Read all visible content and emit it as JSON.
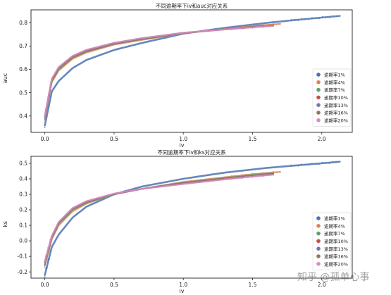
{
  "watermark": "知乎 @孤单心事",
  "legend_labels": [
    "逾期率1%",
    "逾期率4%",
    "逾期率7%",
    "逾期率10%",
    "逾期率13%",
    "逾期率16%",
    "逾期率20%"
  ],
  "series_colors": [
    "#4c72b0",
    "#dd8452",
    "#55a868",
    "#c44e52",
    "#8172b3",
    "#937860",
    "#da8bc3"
  ],
  "chart_data": [
    {
      "type": "scatter",
      "title": "不同逾期率下iv和auc对应关系",
      "xlabel": "iv",
      "ylabel": "auc",
      "xlim": [
        -0.1,
        2.22
      ],
      "ylim": [
        0.33,
        0.855
      ],
      "xticks": [
        "0.0",
        "0.5",
        "1.0",
        "1.5",
        "2.0"
      ],
      "yticks": [
        "0.4",
        "0.5",
        "0.6",
        "0.7",
        "0.8"
      ],
      "xtick_values": [
        0.0,
        0.5,
        1.0,
        1.5,
        2.0
      ],
      "ytick_values": [
        0.4,
        0.5,
        0.6,
        0.7,
        0.8
      ],
      "legend_position": "lower-right",
      "grid": false,
      "series": [
        {
          "name": "逾期率1%",
          "x": [
            0.0,
            0.05,
            0.1,
            0.2,
            0.3,
            0.5,
            0.7,
            1.0,
            1.3,
            1.6,
            1.8,
            2.0,
            2.13
          ],
          "y": [
            0.36,
            0.505,
            0.55,
            0.605,
            0.64,
            0.683,
            0.713,
            0.753,
            0.778,
            0.799,
            0.811,
            0.822,
            0.829
          ]
        },
        {
          "name": "逾期率4%",
          "x": [
            0.0,
            0.05,
            0.1,
            0.2,
            0.3,
            0.5,
            0.7,
            1.0,
            1.3,
            1.5,
            1.7
          ],
          "y": [
            0.39,
            0.545,
            0.595,
            0.645,
            0.672,
            0.706,
            0.726,
            0.754,
            0.773,
            0.785,
            0.795
          ]
        },
        {
          "name": "逾期率7%",
          "x": [
            0.0,
            0.05,
            0.1,
            0.2,
            0.3,
            0.5,
            0.7,
            1.0,
            1.3,
            1.5,
            1.65
          ],
          "y": [
            0.395,
            0.55,
            0.6,
            0.65,
            0.676,
            0.709,
            0.729,
            0.755,
            0.772,
            0.783,
            0.79
          ]
        },
        {
          "name": "逾期率10%",
          "x": [
            0.0,
            0.05,
            0.1,
            0.2,
            0.3,
            0.5,
            0.7,
            1.0,
            1.3,
            1.5,
            1.65
          ],
          "y": [
            0.4,
            0.555,
            0.605,
            0.653,
            0.679,
            0.711,
            0.731,
            0.756,
            0.772,
            0.782,
            0.789
          ]
        },
        {
          "name": "逾期率13%",
          "x": [
            0.0,
            0.05,
            0.1,
            0.2,
            0.3,
            0.5,
            0.7,
            1.0,
            1.3,
            1.5,
            1.65
          ],
          "y": [
            0.4,
            0.557,
            0.607,
            0.655,
            0.681,
            0.712,
            0.732,
            0.756,
            0.771,
            0.781,
            0.788
          ]
        },
        {
          "name": "逾期率16%",
          "x": [
            0.0,
            0.05,
            0.1,
            0.2,
            0.3,
            0.5,
            0.7,
            1.0,
            1.3,
            1.5,
            1.65
          ],
          "y": [
            0.4,
            0.558,
            0.608,
            0.656,
            0.682,
            0.713,
            0.733,
            0.757,
            0.771,
            0.78,
            0.787
          ]
        },
        {
          "name": "逾期率20%",
          "x": [
            0.0,
            0.05,
            0.1,
            0.2,
            0.3,
            0.5,
            0.7,
            1.0,
            1.3,
            1.5,
            1.65
          ],
          "y": [
            0.4,
            0.56,
            0.61,
            0.658,
            0.684,
            0.714,
            0.734,
            0.757,
            0.771,
            0.78,
            0.786
          ]
        }
      ]
    },
    {
      "type": "scatter",
      "title": "不同逾期率下iv和ks对应关系",
      "xlabel": "iv",
      "ylabel": "ks",
      "xlim": [
        -0.1,
        2.22
      ],
      "ylim": [
        -0.24,
        0.545
      ],
      "xticks": [
        "0.0",
        "0.5",
        "1.0",
        "1.5",
        "2.0"
      ],
      "yticks": [
        "-0.2",
        "-0.1",
        "0.0",
        "0.1",
        "0.2",
        "0.3",
        "0.4",
        "0.5"
      ],
      "xtick_values": [
        0.0,
        0.5,
        1.0,
        1.5,
        2.0
      ],
      "ytick_values": [
        -0.2,
        -0.1,
        0.0,
        0.1,
        0.2,
        0.3,
        0.4,
        0.5
      ],
      "legend_position": "lower-right",
      "grid": false,
      "series": [
        {
          "name": "逾期率1%",
          "x": [
            0.0,
            0.05,
            0.1,
            0.2,
            0.3,
            0.5,
            0.7,
            1.0,
            1.3,
            1.6,
            1.8,
            2.0,
            2.13
          ],
          "y": [
            -0.22,
            -0.04,
            0.04,
            0.15,
            0.22,
            0.3,
            0.35,
            0.4,
            0.44,
            0.47,
            0.485,
            0.5,
            0.51
          ]
        },
        {
          "name": "逾期率4%",
          "x": [
            0.0,
            0.05,
            0.1,
            0.2,
            0.3,
            0.5,
            0.7,
            1.0,
            1.3,
            1.5,
            1.7
          ],
          "y": [
            -0.16,
            0.01,
            0.1,
            0.19,
            0.24,
            0.3,
            0.335,
            0.38,
            0.41,
            0.43,
            0.445
          ]
        },
        {
          "name": "逾期率7%",
          "x": [
            0.0,
            0.05,
            0.1,
            0.2,
            0.3,
            0.5,
            0.7,
            1.0,
            1.3,
            1.5,
            1.65
          ],
          "y": [
            -0.15,
            0.02,
            0.11,
            0.2,
            0.245,
            0.3,
            0.335,
            0.375,
            0.405,
            0.425,
            0.437
          ]
        },
        {
          "name": "逾期率10%",
          "x": [
            0.0,
            0.05,
            0.1,
            0.2,
            0.3,
            0.5,
            0.7,
            1.0,
            1.3,
            1.5,
            1.65
          ],
          "y": [
            -0.14,
            0.025,
            0.115,
            0.205,
            0.25,
            0.302,
            0.335,
            0.372,
            0.402,
            0.42,
            0.432
          ]
        },
        {
          "name": "逾期率13%",
          "x": [
            0.0,
            0.05,
            0.1,
            0.2,
            0.3,
            0.5,
            0.7,
            1.0,
            1.3,
            1.5,
            1.65
          ],
          "y": [
            -0.14,
            0.027,
            0.117,
            0.207,
            0.252,
            0.303,
            0.335,
            0.37,
            0.4,
            0.418,
            0.43
          ]
        },
        {
          "name": "逾期率16%",
          "x": [
            0.0,
            0.05,
            0.1,
            0.2,
            0.3,
            0.5,
            0.7,
            1.0,
            1.3,
            1.5,
            1.65
          ],
          "y": [
            -0.135,
            0.03,
            0.12,
            0.21,
            0.254,
            0.304,
            0.335,
            0.368,
            0.398,
            0.416,
            0.428
          ]
        },
        {
          "name": "逾期率20%",
          "x": [
            0.0,
            0.05,
            0.1,
            0.2,
            0.3,
            0.5,
            0.7,
            1.0,
            1.3,
            1.5,
            1.65
          ],
          "y": [
            -0.13,
            0.032,
            0.122,
            0.212,
            0.256,
            0.305,
            0.335,
            0.366,
            0.396,
            0.414,
            0.426
          ]
        }
      ]
    }
  ]
}
